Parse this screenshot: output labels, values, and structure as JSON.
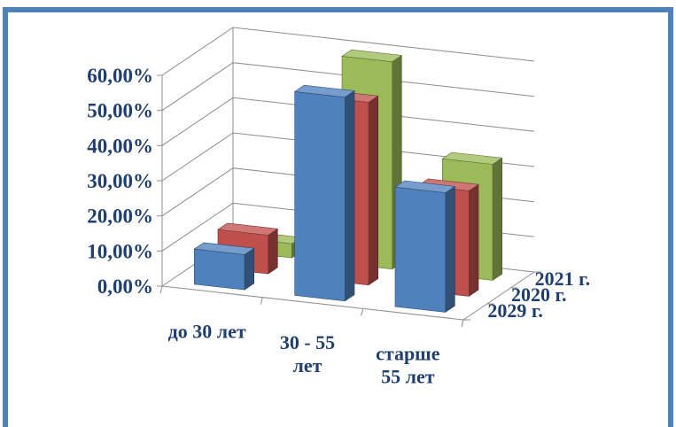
{
  "title": "",
  "colors": {
    "frame": "#4f81bd",
    "axis_text": "#1f3f6f",
    "grid": "#8c8c8c"
  },
  "chart_data": {
    "type": "bar",
    "title": "",
    "xlabel": "",
    "ylabel": "",
    "ylim": [
      0,
      60
    ],
    "y_ticks": [
      "0,00%",
      "10,00%",
      "20,00%",
      "30,00%",
      "40,00%",
      "50,00%",
      "60,00%"
    ],
    "categories": [
      [
        "до 30 лет"
      ],
      [
        "30 - 55",
        "лет"
      ],
      [
        "старше",
        "55 лет"
      ]
    ],
    "series": [
      {
        "name": "2029 г.",
        "color": "#4f81bd",
        "values": [
          10,
          58,
          34
        ]
      },
      {
        "name": "2020 г.",
        "color": "#c0504d",
        "values": [
          11,
          52,
          30
        ]
      },
      {
        "name": "2021 г.",
        "color": "#9bbb59",
        "values": [
          4,
          59,
          33
        ]
      }
    ],
    "grid": true,
    "legend": "none",
    "projection": "3d-column"
  }
}
